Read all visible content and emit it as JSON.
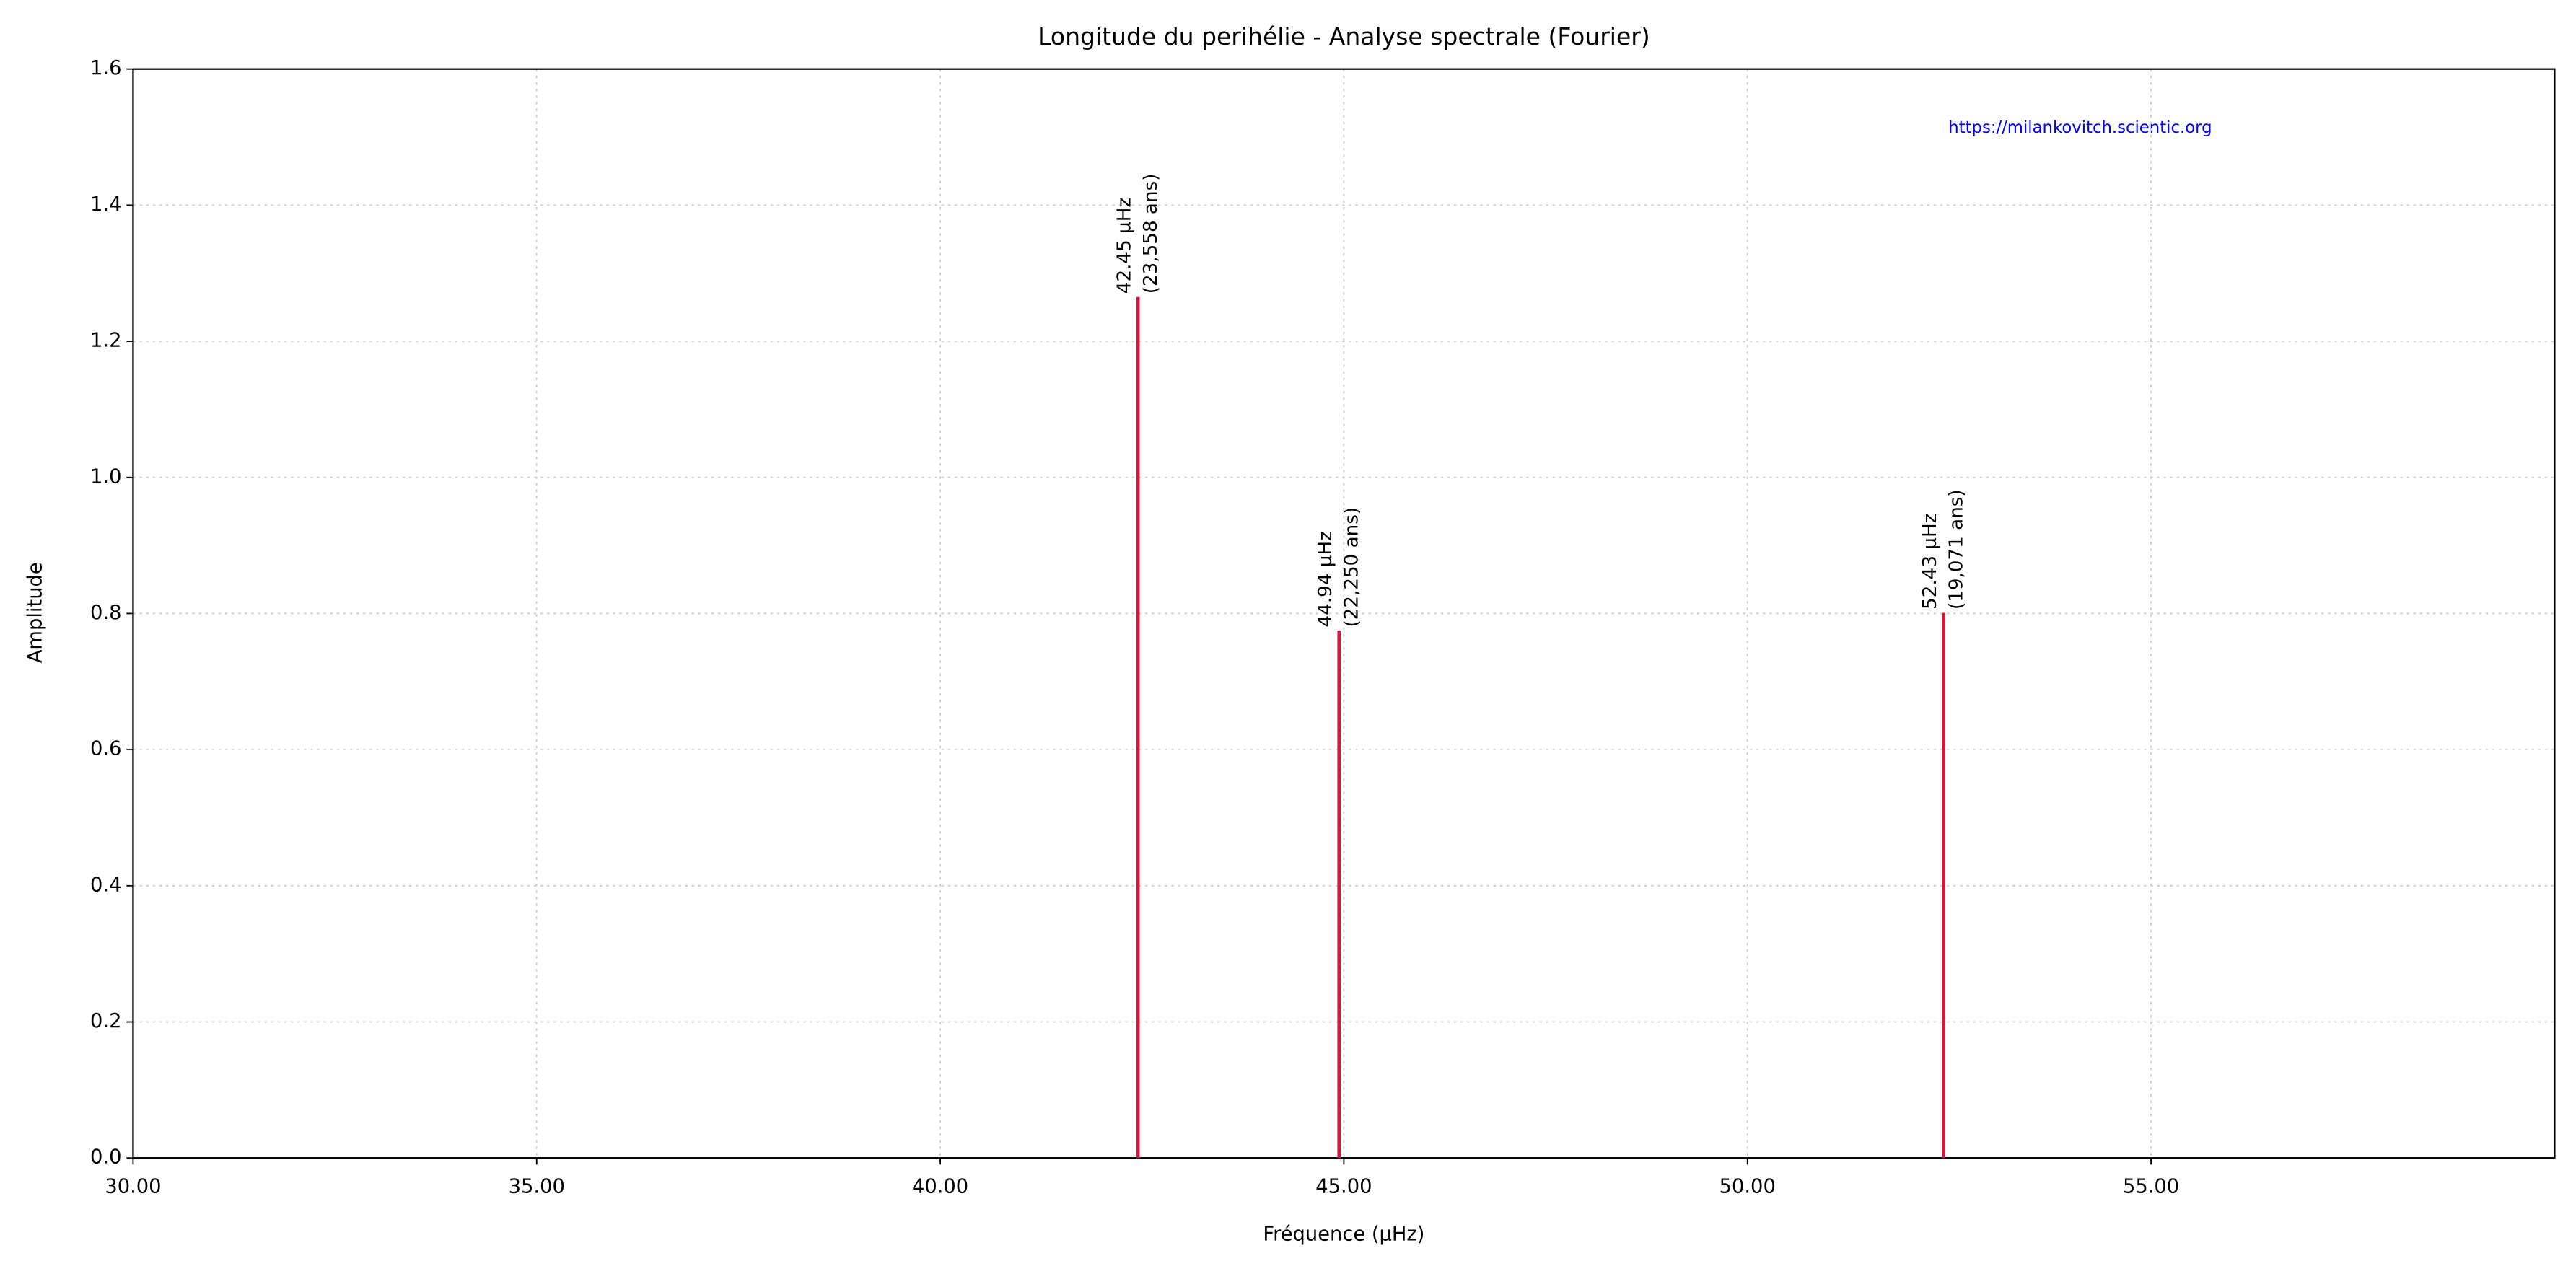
{
  "chart_data": {
    "type": "stem",
    "title": "Longitude du perihélie - Analyse spectrale (Fourier)",
    "xlabel": "Fréquence (µHz)",
    "ylabel": "Amplitude",
    "watermark": "https://milankovitch.scientic.org",
    "x": [
      42.45,
      44.94,
      52.43
    ],
    "values": [
      1.265,
      0.775,
      0.801
    ],
    "freq_labels": [
      "42.45 µHz",
      "44.94 µHz",
      "52.43 µHz"
    ],
    "period_labels": [
      "(23,558 ans)",
      "(22,250 ans)",
      "(19,071 ans)"
    ],
    "color": "#dc143c",
    "xlim": [
      30,
      60
    ],
    "xticks": [
      {
        "value": 30,
        "label": "30.00"
      },
      {
        "value": 35,
        "label": "35.00"
      },
      {
        "value": 40,
        "label": "40.00"
      },
      {
        "value": 45,
        "label": "45.00"
      },
      {
        "value": 50,
        "label": "50.00"
      },
      {
        "value": 55,
        "label": "55.00"
      }
    ],
    "ylim": [
      0,
      1.6
    ],
    "yticks": [
      {
        "value": 0,
        "label": "0.0"
      },
      0.2,
      0.4,
      0.6,
      0.8,
      {
        "value": 1,
        "label": "1.0"
      },
      1.2,
      1.4,
      1.6
    ],
    "grid": true
  }
}
